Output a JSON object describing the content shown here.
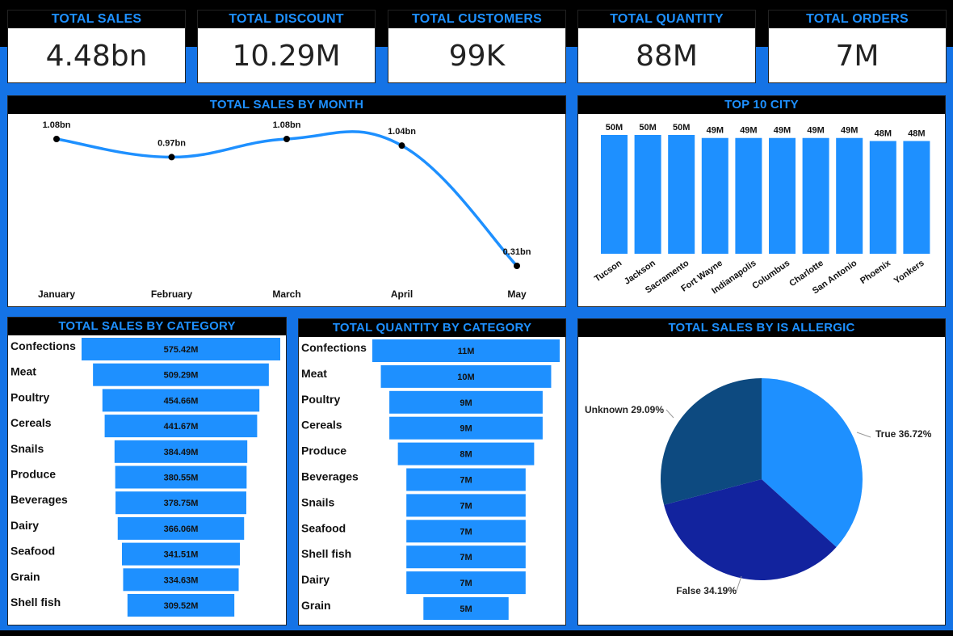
{
  "kpis": [
    {
      "title": "TOTAL SALES",
      "value": "4.48bn"
    },
    {
      "title": "TOTAL DISCOUNT",
      "value": "10.29M"
    },
    {
      "title": "TOTAL CUSTOMERS",
      "value": "99K"
    },
    {
      "title": "TOTAL QUANTITY",
      "value": "88M"
    },
    {
      "title": "TOTAL ORDERS",
      "value": "7M"
    }
  ],
  "colors": {
    "background": "#1473e6",
    "bar": "#1e90ff",
    "title_text": "#1e90ff",
    "title_bg": "#000000",
    "pie_true": "#1e90ff",
    "pie_false": "#12239e",
    "pie_unknown": "#0d4a80"
  },
  "chart_data": [
    {
      "type": "line",
      "title": "TOTAL SALES BY MONTH",
      "categories": [
        "January",
        "February",
        "March",
        "April",
        "May"
      ],
      "values": [
        1.08,
        0.97,
        1.08,
        1.04,
        0.31
      ],
      "labels": [
        "1.08bn",
        "0.97bn",
        "1.08bn",
        "1.04bn",
        "0.31bn"
      ],
      "unit": "bn",
      "ylim": [
        0.31,
        1.08
      ]
    },
    {
      "type": "bar",
      "title": "TOP 10 CITY",
      "categories": [
        "Tucson",
        "Jackson",
        "Sacramento",
        "Fort Wayne",
        "Indianapolis",
        "Columbus",
        "Charlotte",
        "San Antonio",
        "Phoenix",
        "Yonkers"
      ],
      "values": [
        50,
        50,
        50,
        49,
        49,
        49,
        49,
        49,
        48,
        48
      ],
      "labels": [
        "50M",
        "50M",
        "50M",
        "49M",
        "49M",
        "49M",
        "49M",
        "49M",
        "48M",
        "48M"
      ],
      "unit": "M"
    },
    {
      "type": "bar",
      "orientation": "funnel",
      "title": "TOTAL SALES BY CATEGORY",
      "categories": [
        "Confections",
        "Meat",
        "Poultry",
        "Cereals",
        "Snails",
        "Produce",
        "Beverages",
        "Dairy",
        "Seafood",
        "Grain",
        "Shell fish"
      ],
      "values": [
        575.42,
        509.29,
        454.66,
        441.67,
        384.49,
        380.55,
        378.75,
        366.06,
        341.51,
        334.63,
        309.52
      ],
      "labels": [
        "575.42M",
        "509.29M",
        "454.66M",
        "441.67M",
        "384.49M",
        "380.55M",
        "378.75M",
        "366.06M",
        "341.51M",
        "334.63M",
        "309.52M"
      ],
      "unit": "M"
    },
    {
      "type": "bar",
      "orientation": "funnel",
      "title": "TOTAL QUANTITY BY CATEGORY",
      "categories": [
        "Confections",
        "Meat",
        "Poultry",
        "Cereals",
        "Produce",
        "Beverages",
        "Snails",
        "Seafood",
        "Shell fish",
        "Dairy",
        "Grain"
      ],
      "values": [
        11,
        10,
        9,
        9,
        8,
        7,
        7,
        7,
        7,
        7,
        5
      ],
      "labels": [
        "11M",
        "10M",
        "9M",
        "9M",
        "8M",
        "7M",
        "7M",
        "7M",
        "7M",
        "7M",
        "5M"
      ],
      "unit": "M"
    },
    {
      "type": "pie",
      "title": "TOTAL SALES BY IS ALLERGIC",
      "categories": [
        "True",
        "False",
        "Unknown"
      ],
      "values": [
        36.72,
        34.19,
        29.09
      ],
      "labels": [
        "True 36.72%",
        "False 34.19%",
        "Unknown 29.09%"
      ],
      "unit": "%"
    }
  ]
}
